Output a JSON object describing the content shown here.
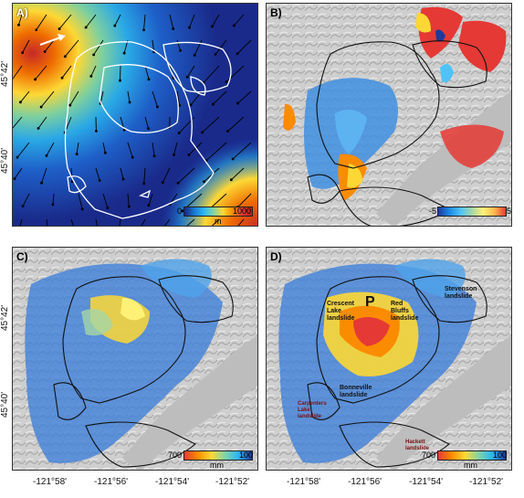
{
  "panels": {
    "a": {
      "label": "A)",
      "cbar_min": "0",
      "cbar_max": "1000",
      "cbar_unit": "m",
      "colors": [
        "#1a237e",
        "#1976d2",
        "#29b6f6",
        "#81d4a6",
        "#fdd835",
        "#fb8c00",
        "#e53935",
        "#b71c1c"
      ]
    },
    "b": {
      "label": "B)",
      "cbar_min": "-5",
      "cbar_max": "5",
      "colors": [
        "#1e3a9a",
        "#1e88e5",
        "#4fc3f7",
        "#a5d6a7",
        "#fff176",
        "#ffb74d",
        "#e53935"
      ]
    },
    "c": {
      "label": "C)",
      "cbar_min": "700",
      "cbar_max": "100",
      "cbar_unit": "mm",
      "colors": [
        "#e53935",
        "#fb8c00",
        "#fdd835",
        "#81d4a6",
        "#29b6f6",
        "#1e3a9a"
      ]
    },
    "d": {
      "label": "D)",
      "cbar_min": "700",
      "cbar_max": "100",
      "cbar_unit": "mm",
      "colors": [
        "#e53935",
        "#fb8c00",
        "#fdd835",
        "#81d4a6",
        "#29b6f6",
        "#1e3a9a"
      ],
      "landslides": {
        "crescent": "Crescent Lake landslide",
        "redbluffs": "Red Bluffs landslide",
        "stevenson": "Stevenson landslide",
        "bonneville": "Bonneville landslide",
        "small1": "Carpenters Lake landslide",
        "small2": "Hackett landslide"
      },
      "marker": "P"
    }
  },
  "axes": {
    "y_ticks": [
      "45°42'",
      "45°40'"
    ],
    "x_ticks": [
      "-121°58'",
      "-121°56'",
      "-121°54'",
      "-121°52'"
    ]
  }
}
